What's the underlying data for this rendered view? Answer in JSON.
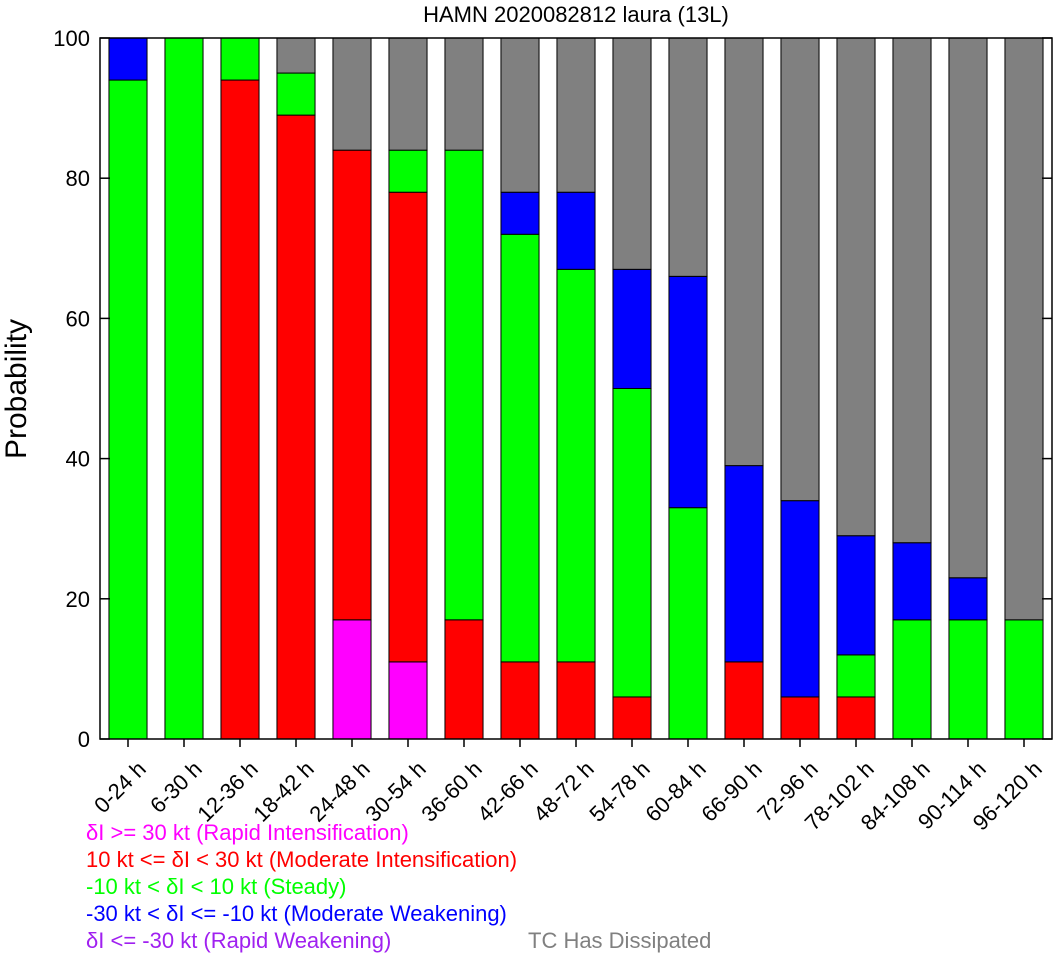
{
  "chart_data": {
    "type": "bar",
    "stacked": true,
    "title": "HAMN 2020082812 laura (13L)",
    "ylabel": "Probability",
    "xlabel": "",
    "ylim": [
      0,
      100
    ],
    "yticks": [
      0,
      20,
      40,
      60,
      80,
      100
    ],
    "categories": [
      "0-24 h",
      "6-30 h",
      "12-36 h",
      "18-42 h",
      "24-48 h",
      "30-54 h",
      "36-60 h",
      "42-66 h",
      "48-72 h",
      "54-78 h",
      "60-84 h",
      "66-90 h",
      "72-96 h",
      "78-102 h",
      "84-108 h",
      "90-114 h",
      "96-120 h"
    ],
    "series": [
      {
        "name": "δI >= 30 kt (Rapid Intensification)",
        "color": "#ff00ff",
        "values": [
          0,
          0,
          0,
          0,
          17,
          11,
          0,
          0,
          0,
          0,
          0,
          0,
          0,
          0,
          0,
          0,
          0
        ]
      },
      {
        "name": "10 kt <= δI < 30 kt (Moderate Intensification)",
        "color": "#ff0000",
        "values": [
          0,
          0,
          94,
          89,
          67,
          67,
          17,
          11,
          11,
          6,
          0,
          11,
          6,
          6,
          0,
          0,
          0
        ]
      },
      {
        "name": "-10 kt < δI < 10 kt (Steady)",
        "color": "#00ff00",
        "values": [
          94,
          100,
          6,
          6,
          0,
          6,
          67,
          61,
          56,
          44,
          33,
          0,
          0,
          6,
          17,
          17,
          17
        ]
      },
      {
        "name": "-30 kt < δI <= -10 kt (Moderate Weakening)",
        "color": "#0000ff",
        "values": [
          6,
          0,
          0,
          0,
          0,
          0,
          0,
          6,
          11,
          17,
          33,
          28,
          28,
          17,
          11,
          6,
          0
        ]
      },
      {
        "name": "δI <= -30 kt (Rapid Weakening)",
        "color": "#a020f0",
        "values": [
          0,
          0,
          0,
          0,
          0,
          0,
          0,
          0,
          0,
          0,
          0,
          0,
          0,
          0,
          0,
          0,
          0
        ]
      },
      {
        "name": "TC Has Dissipated",
        "color": "#808080",
        "values": [
          0,
          0,
          0,
          5,
          16,
          16,
          16,
          22,
          22,
          33,
          34,
          61,
          66,
          71,
          72,
          77,
          83
        ]
      }
    ],
    "legend_position": "bottom-left"
  }
}
